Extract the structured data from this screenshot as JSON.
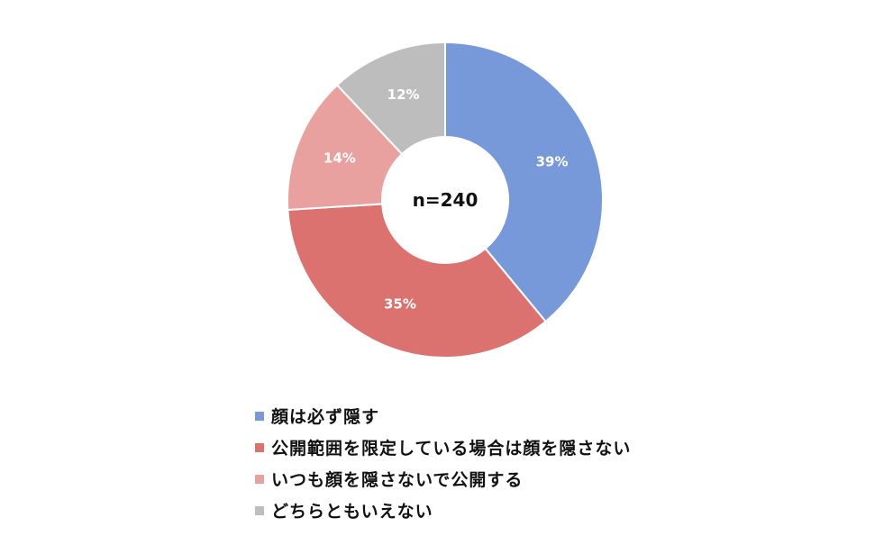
{
  "chart_data": {
    "type": "pie",
    "donut": true,
    "center_label": "n=240",
    "categories": [
      "顔は必ず隠す",
      "公開範囲を限定している場合は顔を隠さない",
      "いつも顔を隠さないで公開する",
      "どちらともいえない"
    ],
    "values": [
      39,
      35,
      14,
      12
    ],
    "data_labels": [
      "39%",
      "35%",
      "14%",
      "12%"
    ],
    "colors": [
      "#7799d9",
      "#dc7270",
      "#e8a19f",
      "#bdbdbd"
    ],
    "legend_placement": "bottom"
  }
}
